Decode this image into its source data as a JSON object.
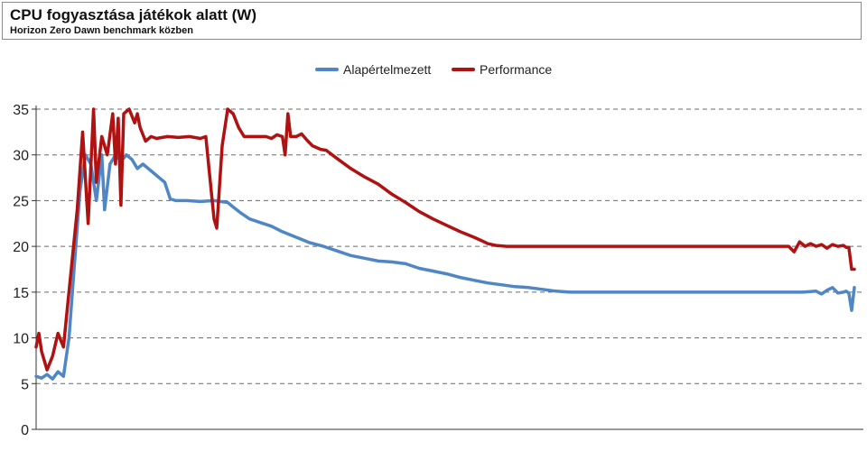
{
  "header": {
    "title": "CPU fogyasztása játékok alatt (W)",
    "subtitle": "Horizon Zero Dawn benchmark közben"
  },
  "colors": {
    "series1": "#4f86c6",
    "series2": "#b01212",
    "grid": "#6a6a6a"
  },
  "chart_data": {
    "type": "line",
    "title": "CPU fogyasztása játékok alatt (W)",
    "subtitle": "Horizon Zero Dawn benchmark közben",
    "xlabel": "",
    "ylabel": "",
    "ylim": [
      0,
      35
    ],
    "yticks": [
      0,
      5,
      10,
      15,
      20,
      25,
      30,
      35
    ],
    "grid": "horizontal-dashed",
    "legend": "top-center",
    "x_count": 300,
    "series": [
      {
        "name": "Alapértelmezett",
        "color": "#4f86c6",
        "points": [
          [
            0,
            5.8
          ],
          [
            2,
            5.6
          ],
          [
            4,
            6
          ],
          [
            6,
            5.5
          ],
          [
            8,
            6.3
          ],
          [
            10,
            5.8
          ],
          [
            12,
            10
          ],
          [
            14,
            18
          ],
          [
            16,
            26
          ],
          [
            18,
            30
          ],
          [
            20,
            29
          ],
          [
            22,
            25
          ],
          [
            24,
            30
          ],
          [
            25,
            24
          ],
          [
            27,
            29
          ],
          [
            29,
            30
          ],
          [
            31,
            29.3
          ],
          [
            33,
            30
          ],
          [
            35,
            29.5
          ],
          [
            37,
            28.5
          ],
          [
            39,
            29
          ],
          [
            41,
            28.5
          ],
          [
            43,
            28
          ],
          [
            45,
            27.5
          ],
          [
            47,
            27
          ],
          [
            49,
            25.2
          ],
          [
            51,
            25
          ],
          [
            55,
            25
          ],
          [
            60,
            24.9
          ],
          [
            65,
            25
          ],
          [
            70,
            24.8
          ],
          [
            72,
            24.3
          ],
          [
            75,
            23.6
          ],
          [
            78,
            23
          ],
          [
            82,
            22.6
          ],
          [
            86,
            22.2
          ],
          [
            90,
            21.6
          ],
          [
            95,
            21
          ],
          [
            100,
            20.4
          ],
          [
            105,
            20
          ],
          [
            110,
            19.5
          ],
          [
            115,
            19
          ],
          [
            120,
            18.7
          ],
          [
            125,
            18.4
          ],
          [
            130,
            18.3
          ],
          [
            135,
            18.1
          ],
          [
            140,
            17.6
          ],
          [
            145,
            17.3
          ],
          [
            150,
            17
          ],
          [
            155,
            16.6
          ],
          [
            160,
            16.3
          ],
          [
            165,
            16
          ],
          [
            170,
            15.8
          ],
          [
            175,
            15.6
          ],
          [
            180,
            15.5
          ],
          [
            185,
            15.3
          ],
          [
            190,
            15.1
          ],
          [
            195,
            15
          ],
          [
            200,
            15
          ],
          [
            205,
            15
          ],
          [
            210,
            15
          ],
          [
            220,
            15
          ],
          [
            240,
            15
          ],
          [
            260,
            15
          ],
          [
            280,
            15
          ],
          [
            285,
            15.1
          ],
          [
            287,
            14.8
          ],
          [
            289,
            15.2
          ],
          [
            291,
            15.5
          ],
          [
            293,
            14.9
          ],
          [
            295,
            15
          ],
          [
            296,
            15.1
          ],
          [
            297,
            14.9
          ],
          [
            298,
            13
          ],
          [
            299,
            15.5
          ]
        ]
      },
      {
        "name": "Performance",
        "color": "#b01212",
        "points": [
          [
            0,
            9
          ],
          [
            1,
            10.5
          ],
          [
            2,
            8.5
          ],
          [
            4,
            6.5
          ],
          [
            6,
            8
          ],
          [
            8,
            10.5
          ],
          [
            10,
            9
          ],
          [
            11,
            12
          ],
          [
            13,
            18
          ],
          [
            15,
            24
          ],
          [
            17,
            32.5
          ],
          [
            19,
            22.5
          ],
          [
            21,
            35
          ],
          [
            22,
            27
          ],
          [
            24,
            32
          ],
          [
            26,
            30
          ],
          [
            28,
            34.5
          ],
          [
            29,
            29
          ],
          [
            30,
            34
          ],
          [
            31,
            24.5
          ],
          [
            32,
            34.5
          ],
          [
            34,
            35
          ],
          [
            36,
            33.5
          ],
          [
            37,
            34.5
          ],
          [
            38,
            33
          ],
          [
            40,
            31.5
          ],
          [
            42,
            32
          ],
          [
            44,
            31.8
          ],
          [
            48,
            32
          ],
          [
            52,
            31.9
          ],
          [
            56,
            32
          ],
          [
            60,
            31.8
          ],
          [
            62,
            32
          ],
          [
            63,
            29
          ],
          [
            65,
            23
          ],
          [
            66,
            22
          ],
          [
            68,
            31
          ],
          [
            70,
            35
          ],
          [
            72,
            34.5
          ],
          [
            74,
            33
          ],
          [
            76,
            32
          ],
          [
            80,
            32
          ],
          [
            84,
            32
          ],
          [
            86,
            31.8
          ],
          [
            88,
            32.2
          ],
          [
            90,
            32
          ],
          [
            91,
            30
          ],
          [
            92,
            34.5
          ],
          [
            93,
            32
          ],
          [
            95,
            32
          ],
          [
            97,
            32.3
          ],
          [
            99,
            31.6
          ],
          [
            101,
            31
          ],
          [
            104,
            30.6
          ],
          [
            106,
            30.5
          ],
          [
            110,
            29.6
          ],
          [
            115,
            28.5
          ],
          [
            120,
            27.6
          ],
          [
            125,
            26.8
          ],
          [
            130,
            25.7
          ],
          [
            135,
            24.8
          ],
          [
            140,
            23.8
          ],
          [
            145,
            23
          ],
          [
            150,
            22.3
          ],
          [
            155,
            21.6
          ],
          [
            160,
            21
          ],
          [
            163,
            20.6
          ],
          [
            165,
            20.3
          ],
          [
            168,
            20.1
          ],
          [
            172,
            20
          ],
          [
            180,
            20
          ],
          [
            200,
            20
          ],
          [
            220,
            20
          ],
          [
            240,
            20
          ],
          [
            260,
            20
          ],
          [
            275,
            20
          ],
          [
            277,
            19.4
          ],
          [
            279,
            20.5
          ],
          [
            281,
            20
          ],
          [
            283,
            20.3
          ],
          [
            285,
            20
          ],
          [
            287,
            20.2
          ],
          [
            289,
            19.8
          ],
          [
            291,
            20.2
          ],
          [
            293,
            20
          ],
          [
            295,
            20.1
          ],
          [
            296,
            19.9
          ],
          [
            297,
            19.9
          ],
          [
            298,
            17.5
          ],
          [
            299,
            17.5
          ]
        ]
      }
    ]
  }
}
